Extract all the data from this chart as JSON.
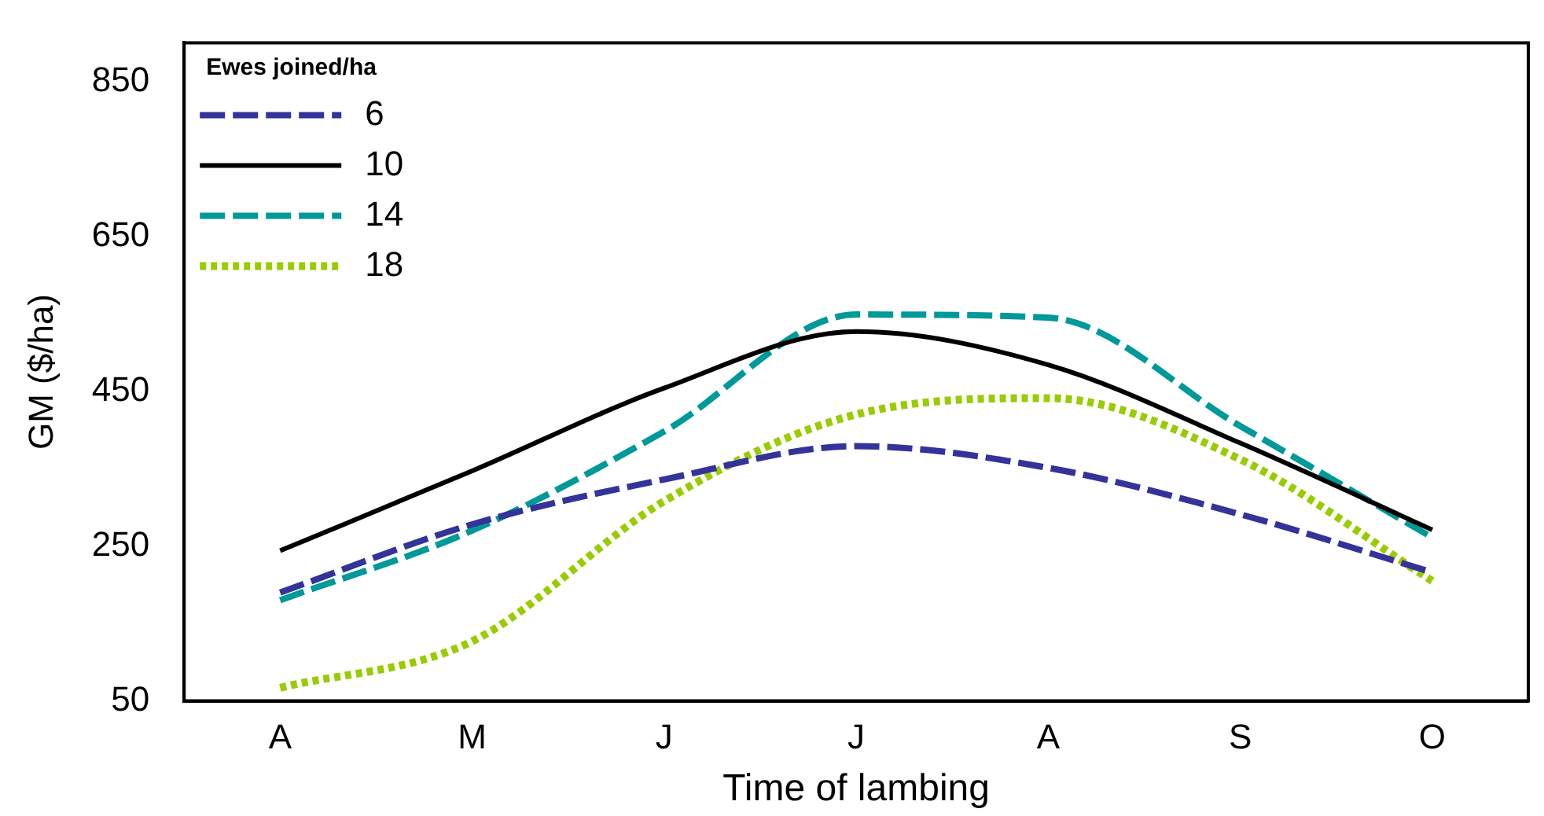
{
  "chart_data": {
    "type": "line",
    "xlabel": "Time of lambing",
    "ylabel": "GM ($/ha)",
    "legend_title": "Ewes joined/ha",
    "legend": "top left",
    "grid": false,
    "marker": "none",
    "categories": [
      "A",
      "M",
      "J",
      "J",
      "A",
      "S",
      "O"
    ],
    "ylim": [
      50,
      900
    ],
    "yticks": [
      50,
      250,
      450,
      650,
      850
    ],
    "series": [
      {
        "name": "6",
        "color": "#333399",
        "line_style": "dashed",
        "values": [
          190,
          278,
          336,
          379,
          351,
          291,
          216
        ]
      },
      {
        "name": "10",
        "color": "#000000",
        "line_style": "solid",
        "values": [
          244,
          347,
          454,
          527,
          484,
          383,
          271
        ]
      },
      {
        "name": "14",
        "color": "#009999",
        "line_style": "dashed",
        "values": [
          180,
          270,
          398,
          549,
          545,
          405,
          261
        ]
      },
      {
        "name": "18",
        "color": "#99cc00",
        "line_style": "dotted",
        "values": [
          67,
          127,
          308,
          420,
          441,
          362,
          205
        ]
      }
    ]
  }
}
